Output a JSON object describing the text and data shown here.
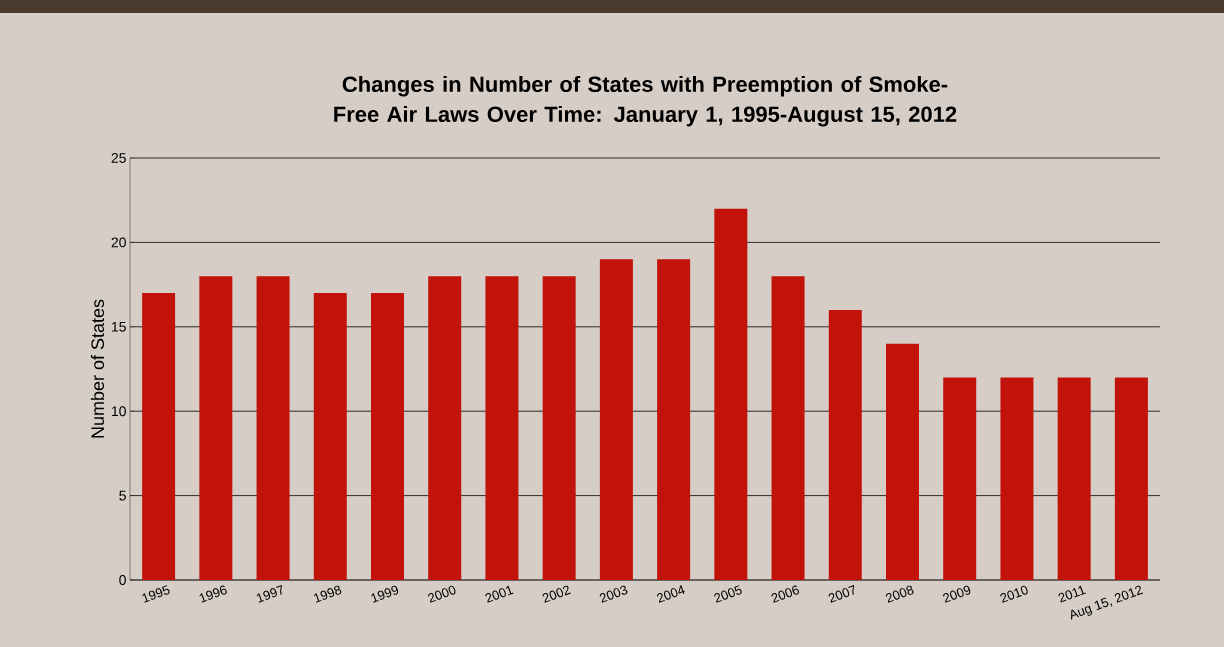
{
  "chart_data": {
    "type": "bar",
    "title": "Changes in Number of States with Preemption of Smoke-Free Air Laws Over Time: January 1, 1995-August 15, 2012",
    "ylabel": "Number of States",
    "categories": [
      "1995",
      "1996",
      "1997",
      "1998",
      "1999",
      "2000",
      "2001",
      "2002",
      "2003",
      "2004",
      "2005",
      "2006",
      "2007",
      "2008",
      "2009",
      "2010",
      "2011",
      "Aug 15, 2012"
    ],
    "values": [
      17,
      18,
      18,
      17,
      17,
      18,
      18,
      18,
      19,
      19,
      22,
      18,
      16,
      14,
      12,
      12,
      12,
      12
    ],
    "color": "#c1130a",
    "ylim": [
      0,
      25
    ],
    "yticks": [
      0,
      5,
      10,
      15,
      20,
      25
    ],
    "grid": "y"
  }
}
